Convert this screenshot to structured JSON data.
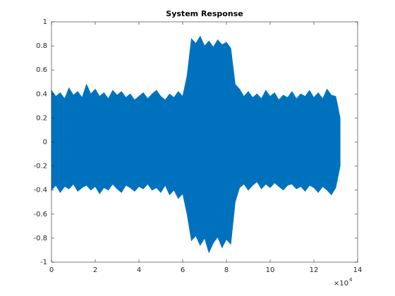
{
  "chart_data": {
    "type": "area",
    "title": "System Response",
    "x": [
      0,
      0.2,
      0.4,
      0.6,
      0.8,
      1,
      1.2,
      1.4,
      1.6,
      1.8,
      2,
      2.2,
      2.4,
      2.6,
      2.8,
      3,
      3.2,
      3.4,
      3.6,
      3.8,
      4,
      4.2,
      4.4,
      4.6,
      4.8,
      5,
      5.2,
      5.4,
      5.6,
      5.8,
      6,
      6.2,
      6.4,
      6.6,
      6.8,
      7,
      7.2,
      7.4,
      7.6,
      7.8,
      8,
      8.2,
      8.4,
      8.6,
      8.8,
      9,
      9.2,
      9.4,
      9.6,
      9.8,
      10,
      10.2,
      10.4,
      10.6,
      10.8,
      11,
      11.2,
      11.4,
      11.6,
      11.8,
      12,
      12.2,
      12.4,
      12.6,
      12.8,
      13,
      13.2
    ],
    "series": [
      {
        "color": "#0072bd",
        "values": [
          0.43,
          0.38,
          0.41,
          0.36,
          0.45,
          0.39,
          0.42,
          0.37,
          0.48,
          0.4,
          0.44,
          0.38,
          0.41,
          0.36,
          0.43,
          0.39,
          0.42,
          0.37,
          0.4,
          0.35,
          0.38,
          0.41,
          0.36,
          0.4,
          0.43,
          0.38,
          0.35,
          0.4,
          0.37,
          0.42,
          0.38,
          0.55,
          0.86,
          0.82,
          0.88,
          0.8,
          0.84,
          0.79,
          0.85,
          0.81,
          0.83,
          0.78,
          0.48,
          0.44,
          0.38,
          0.42,
          0.37,
          0.4,
          0.36,
          0.43,
          0.38,
          0.41,
          0.35,
          0.39,
          0.37,
          0.42,
          0.36,
          0.4,
          0.38,
          0.43,
          0.37,
          0.41,
          0.36,
          0.44,
          0.39,
          0.38,
          0.2
        ]
      },
      {
        "color": "#0072bd",
        "values": [
          -0.4,
          -0.36,
          -0.42,
          -0.37,
          -0.39,
          -0.35,
          -0.41,
          -0.38,
          -0.36,
          -0.4,
          -0.37,
          -0.43,
          -0.38,
          -0.4,
          -0.35,
          -0.39,
          -0.42,
          -0.36,
          -0.38,
          -0.41,
          -0.37,
          -0.39,
          -0.35,
          -0.4,
          -0.38,
          -0.42,
          -0.36,
          -0.44,
          -0.4,
          -0.47,
          -0.43,
          -0.6,
          -0.82,
          -0.78,
          -0.86,
          -0.8,
          -0.92,
          -0.84,
          -0.79,
          -0.88,
          -0.81,
          -0.85,
          -0.5,
          -0.38,
          -0.35,
          -0.4,
          -0.36,
          -0.33,
          -0.39,
          -0.35,
          -0.38,
          -0.34,
          -0.37,
          -0.4,
          -0.36,
          -0.35,
          -0.39,
          -0.37,
          -0.41,
          -0.36,
          -0.38,
          -0.42,
          -0.37,
          -0.4,
          -0.44,
          -0.38,
          -0.2
        ]
      }
    ],
    "xlim": [
      0,
      14
    ],
    "xticks": [
      0,
      2,
      4,
      6,
      8,
      10,
      12,
      14
    ],
    "x_multiplier": "×10",
    "x_exponent": "4",
    "ylim": [
      -1,
      1
    ],
    "yticks": [
      -1,
      -0.8,
      -0.6,
      -0.4,
      -0.2,
      0,
      0.2,
      0.4,
      0.6,
      0.8,
      1
    ],
    "grid": false
  }
}
